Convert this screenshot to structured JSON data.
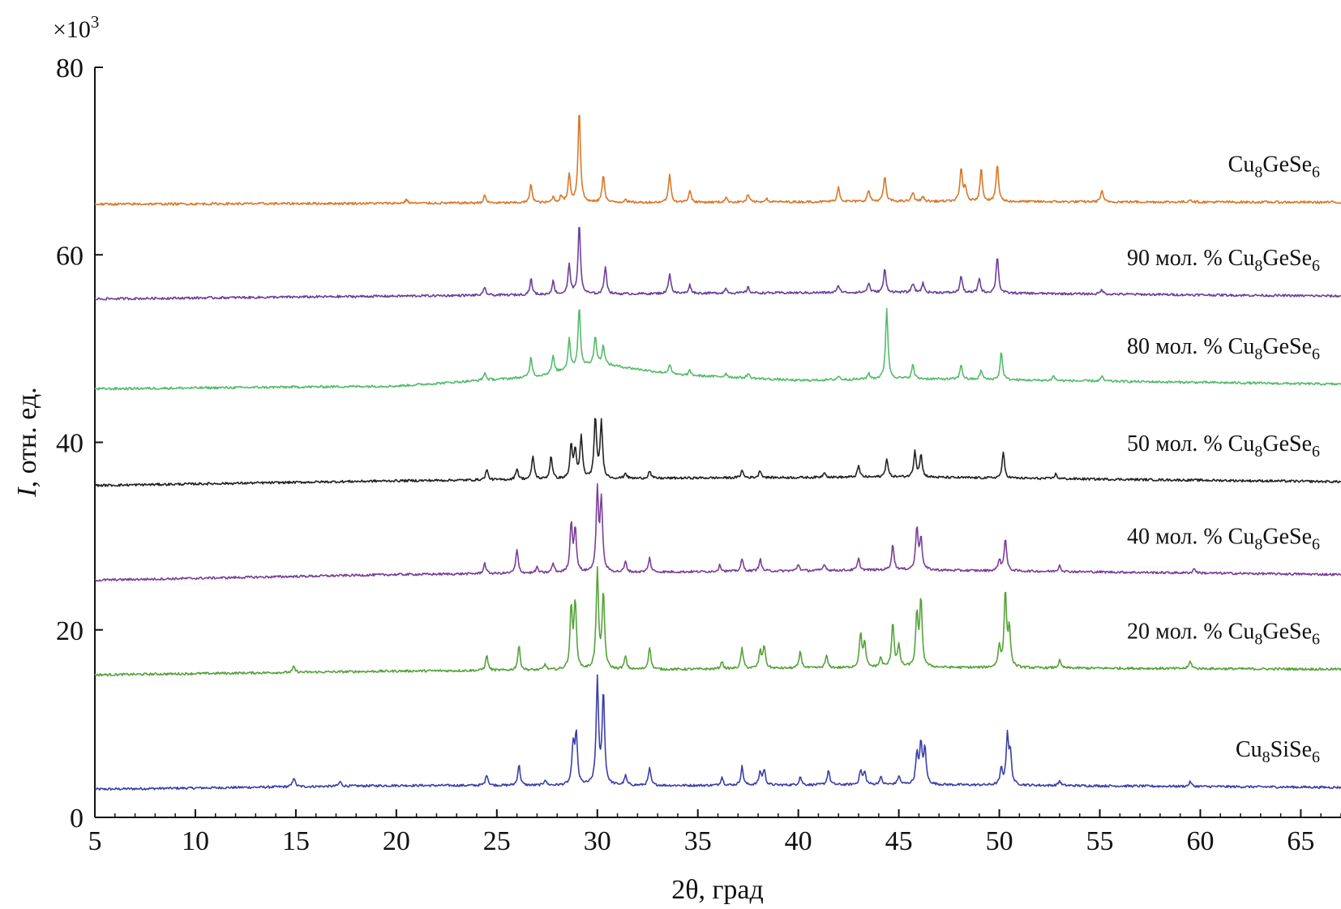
{
  "chart_data": {
    "type": "line",
    "title": "",
    "xlabel": "2θ, град",
    "ylabel": "I, отн. ед.",
    "ylabel_italic_part": "I",
    "ylabel_rest": ", отн. ед.",
    "y_multiplier": "×10",
    "y_multiplier_exp": "3",
    "xlim": [
      5,
      67
    ],
    "ylim": [
      0,
      80
    ],
    "x_ticks": [
      5,
      10,
      15,
      20,
      25,
      30,
      35,
      40,
      45,
      50,
      55,
      60,
      65
    ],
    "y_ticks": [
      0,
      20,
      40,
      60,
      80
    ],
    "grid": false,
    "legend": "inline labels at right end of each trace",
    "series": [
      {
        "name": "Cu8SiSe6",
        "label_parts": [
          "Cu",
          "8",
          "SiSe",
          "6"
        ],
        "color": "#3b3fa8",
        "baseline": [
          [
            5,
            3.0
          ],
          [
            20,
            3.4
          ],
          [
            35,
            3.4
          ],
          [
            45,
            3.5
          ],
          [
            67,
            3.2
          ]
        ],
        "peaks": [
          [
            14.9,
            1.0
          ],
          [
            17.2,
            0.5
          ],
          [
            24.5,
            1.2
          ],
          [
            26.1,
            2.2
          ],
          [
            27.4,
            0.6
          ],
          [
            28.8,
            4.2
          ],
          [
            28.95,
            5.2
          ],
          [
            30.0,
            11.2
          ],
          [
            30.3,
            9.8
          ],
          [
            31.4,
            1.0
          ],
          [
            32.6,
            1.8
          ],
          [
            36.2,
            0.9
          ],
          [
            37.2,
            2.0
          ],
          [
            38.1,
            1.4
          ],
          [
            38.3,
            1.6
          ],
          [
            40.1,
            0.9
          ],
          [
            41.5,
            1.6
          ],
          [
            43.1,
            1.5
          ],
          [
            43.3,
            1.3
          ],
          [
            44.1,
            0.8
          ],
          [
            45.0,
            0.9
          ],
          [
            45.9,
            3.2
          ],
          [
            46.1,
            4.3
          ],
          [
            46.3,
            3.8
          ],
          [
            50.1,
            1.7
          ],
          [
            50.4,
            5.2
          ],
          [
            50.55,
            3.2
          ],
          [
            53.0,
            0.5
          ],
          [
            59.5,
            0.5
          ]
        ]
      },
      {
        "name": "20 мол. % Cu8GeSe6",
        "label_parts": [
          "20 мол. % Cu",
          "8",
          "GeSe",
          "6"
        ],
        "color": "#55a33a",
        "baseline": [
          [
            5,
            15.2
          ],
          [
            20,
            15.6
          ],
          [
            35,
            15.8
          ],
          [
            45,
            16.0
          ],
          [
            67,
            15.8
          ]
        ],
        "peaks": [
          [
            14.9,
            0.6
          ],
          [
            24.5,
            1.6
          ],
          [
            26.1,
            2.6
          ],
          [
            27.4,
            0.6
          ],
          [
            28.7,
            6.5
          ],
          [
            28.9,
            7.0
          ],
          [
            30.0,
            10.5
          ],
          [
            30.3,
            8.0
          ],
          [
            31.4,
            1.4
          ],
          [
            32.6,
            2.4
          ],
          [
            36.2,
            0.8
          ],
          [
            37.2,
            2.2
          ],
          [
            38.1,
            1.8
          ],
          [
            38.3,
            2.4
          ],
          [
            40.1,
            1.8
          ],
          [
            41.4,
            1.3
          ],
          [
            43.1,
            3.6
          ],
          [
            43.3,
            2.5
          ],
          [
            44.1,
            1.0
          ],
          [
            44.7,
            4.8
          ],
          [
            45.0,
            2.2
          ],
          [
            45.9,
            5.5
          ],
          [
            46.1,
            7.0
          ],
          [
            50.0,
            2.2
          ],
          [
            50.3,
            8.0
          ],
          [
            50.5,
            4.0
          ],
          [
            53.0,
            0.8
          ],
          [
            59.5,
            0.8
          ]
        ]
      },
      {
        "name": "40 мол. % Cu8GeSe6",
        "label_parts": [
          "40 мол. % Cu",
          "8",
          "GeSe",
          "6"
        ],
        "color": "#7b3f98",
        "baseline": [
          [
            5,
            25.3
          ],
          [
            20,
            25.9
          ],
          [
            35,
            26.2
          ],
          [
            45,
            26.4
          ],
          [
            67,
            25.9
          ]
        ],
        "peaks": [
          [
            24.4,
            1.1
          ],
          [
            26.0,
            2.5
          ],
          [
            27.0,
            0.6
          ],
          [
            27.8,
            1.0
          ],
          [
            28.7,
            5.2
          ],
          [
            28.9,
            4.5
          ],
          [
            30.0,
            8.5
          ],
          [
            30.2,
            7.5
          ],
          [
            31.4,
            1.1
          ],
          [
            32.6,
            1.5
          ],
          [
            36.1,
            0.7
          ],
          [
            37.2,
            1.3
          ],
          [
            38.1,
            1.3
          ],
          [
            40.0,
            0.7
          ],
          [
            41.3,
            0.7
          ],
          [
            43.0,
            1.2
          ],
          [
            44.7,
            2.7
          ],
          [
            45.9,
            4.5
          ],
          [
            46.1,
            3.3
          ],
          [
            50.0,
            1.2
          ],
          [
            50.3,
            3.5
          ],
          [
            53.0,
            0.7
          ],
          [
            59.7,
            0.5
          ]
        ]
      },
      {
        "name": "50 мол. % Cu8GeSe6",
        "label_parts": [
          "50 мол. % Cu",
          "8",
          "GeSe",
          "6"
        ],
        "color": "#222222",
        "baseline": [
          [
            5,
            35.4
          ],
          [
            20,
            35.9
          ],
          [
            35,
            36.2
          ],
          [
            45,
            36.3
          ],
          [
            67,
            35.8
          ]
        ],
        "peaks": [
          [
            24.5,
            1.1
          ],
          [
            26.0,
            1.2
          ],
          [
            26.8,
            2.5
          ],
          [
            27.7,
            2.5
          ],
          [
            28.7,
            3.6
          ],
          [
            28.9,
            2.8
          ],
          [
            29.2,
            4.5
          ],
          [
            29.9,
            6.5
          ],
          [
            30.2,
            6.0
          ],
          [
            31.4,
            0.6
          ],
          [
            32.6,
            0.8
          ],
          [
            37.2,
            0.8
          ],
          [
            38.1,
            0.8
          ],
          [
            41.3,
            0.6
          ],
          [
            43.0,
            1.2
          ],
          [
            44.4,
            2.0
          ],
          [
            45.8,
            2.8
          ],
          [
            46.1,
            2.4
          ],
          [
            50.2,
            2.7
          ],
          [
            52.8,
            0.5
          ]
        ]
      },
      {
        "name": "80 мол. % Cu8GeSe6",
        "label_parts": [
          "80 мол. % Cu",
          "8",
          "GeSe",
          "6"
        ],
        "color": "#55bb6c",
        "baseline": [
          [
            5,
            45.7
          ],
          [
            20,
            46.0
          ],
          [
            27,
            47.0
          ],
          [
            30,
            48.4
          ],
          [
            34,
            47.2
          ],
          [
            40,
            46.6
          ],
          [
            45,
            46.8
          ],
          [
            67,
            46.2
          ]
        ],
        "peaks": [
          [
            24.4,
            0.8
          ],
          [
            26.7,
            2.2
          ],
          [
            27.8,
            1.8
          ],
          [
            28.6,
            3.3
          ],
          [
            29.1,
            6.5
          ],
          [
            29.9,
            3.0
          ],
          [
            30.3,
            2.0
          ],
          [
            33.6,
            1.0
          ],
          [
            34.6,
            0.5
          ],
          [
            36.4,
            0.4
          ],
          [
            37.5,
            0.5
          ],
          [
            42.0,
            0.4
          ],
          [
            43.5,
            0.6
          ],
          [
            44.4,
            7.5
          ],
          [
            45.7,
            1.5
          ],
          [
            48.1,
            1.6
          ],
          [
            49.1,
            1.0
          ],
          [
            50.1,
            3.0
          ],
          [
            52.7,
            0.5
          ],
          [
            55.1,
            0.5
          ]
        ]
      },
      {
        "name": "90 мол. % Cu8GeSe6",
        "label_parts": [
          "90 мол. % Cu",
          "8",
          "GeSe",
          "6"
        ],
        "color": "#6d3f9a",
        "baseline": [
          [
            5,
            55.3
          ],
          [
            20,
            55.6
          ],
          [
            35,
            55.9
          ],
          [
            45,
            56.0
          ],
          [
            67,
            55.6
          ]
        ],
        "peaks": [
          [
            24.4,
            0.8
          ],
          [
            26.7,
            1.7
          ],
          [
            27.8,
            1.4
          ],
          [
            28.6,
            3.2
          ],
          [
            29.1,
            7.5
          ],
          [
            30.4,
            3.0
          ],
          [
            33.6,
            2.2
          ],
          [
            34.6,
            0.9
          ],
          [
            36.4,
            0.5
          ],
          [
            37.5,
            0.6
          ],
          [
            42.0,
            0.8
          ],
          [
            43.5,
            1.0
          ],
          [
            44.3,
            2.5
          ],
          [
            45.7,
            1.0
          ],
          [
            46.2,
            1.0
          ],
          [
            48.1,
            1.8
          ],
          [
            49.0,
            1.6
          ],
          [
            49.9,
            4.0
          ],
          [
            55.1,
            0.5
          ]
        ]
      },
      {
        "name": "Cu8GeSe6",
        "label_parts": [
          "Cu",
          "8",
          "GeSe",
          "6"
        ],
        "color": "#d9782b",
        "baseline": [
          [
            5,
            65.4
          ],
          [
            20,
            65.5
          ],
          [
            35,
            65.6
          ],
          [
            45,
            65.7
          ],
          [
            67,
            65.6
          ]
        ],
        "peaks": [
          [
            20.5,
            0.4
          ],
          [
            24.4,
            0.8
          ],
          [
            26.7,
            2.0
          ],
          [
            27.8,
            0.6
          ],
          [
            28.2,
            0.7
          ],
          [
            28.6,
            3.0
          ],
          [
            29.1,
            10.0
          ],
          [
            30.3,
            3.0
          ],
          [
            31.4,
            0.4
          ],
          [
            33.6,
            3.0
          ],
          [
            34.6,
            1.3
          ],
          [
            36.4,
            0.5
          ],
          [
            37.5,
            0.8
          ],
          [
            38.4,
            0.4
          ],
          [
            42.0,
            1.6
          ],
          [
            43.5,
            1.2
          ],
          [
            44.3,
            2.7
          ],
          [
            45.7,
            1.0
          ],
          [
            46.2,
            0.5
          ],
          [
            48.1,
            3.5
          ],
          [
            48.3,
            1.5
          ],
          [
            49.1,
            3.5
          ],
          [
            49.9,
            4.0
          ],
          [
            55.1,
            1.2
          ],
          [
            59.5,
            0.3
          ]
        ]
      }
    ]
  }
}
